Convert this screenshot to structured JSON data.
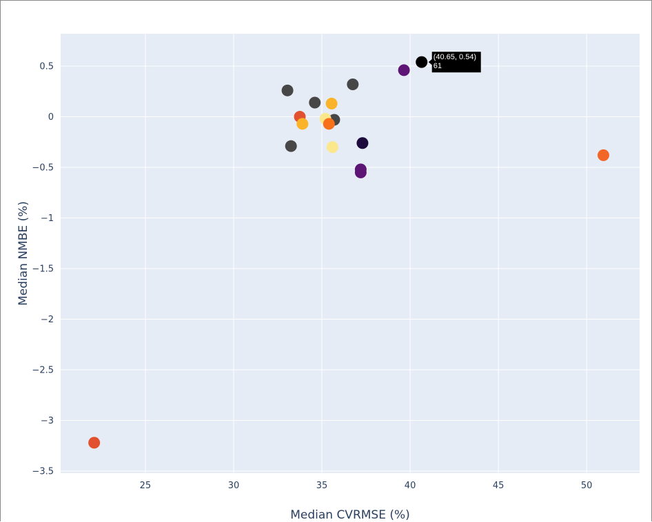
{
  "colors": {
    "plot_background": "#e5ecf6",
    "grid": "#ffffff",
    "tooltip_background": "#000000",
    "tooltip_text": "#ffffff"
  },
  "chart_data": {
    "type": "scatter",
    "title": "",
    "xlabel": "Median CVRMSE (%)",
    "ylabel": "Median NMBE (%)",
    "xlim": [
      20.2,
      53
    ],
    "ylim": [
      -3.52,
      0.82
    ],
    "x_ticks": [
      25,
      30,
      35,
      40,
      45,
      50
    ],
    "y_ticks": [
      0.5,
      0,
      -0.5,
      -1,
      -1.5,
      -2,
      -2.5,
      -3,
      -3.5
    ],
    "x_tick_labels": [
      "25",
      "30",
      "35",
      "40",
      "45",
      "50"
    ],
    "y_tick_labels": [
      "0.5",
      "0",
      "−0.5",
      "−1",
      "−1.5",
      "−2",
      "−2.5",
      "−3",
      "−3.5"
    ],
    "grid": true,
    "points": [
      {
        "x": 33.05,
        "y": 0.26,
        "color": "#474747"
      },
      {
        "x": 34.6,
        "y": 0.14,
        "color": "#474747"
      },
      {
        "x": 36.75,
        "y": 0.32,
        "color": "#474747"
      },
      {
        "x": 35.7,
        "y": -0.03,
        "color": "#474747"
      },
      {
        "x": 33.25,
        "y": -0.29,
        "color": "#474747"
      },
      {
        "x": 35.2,
        "y": -0.02,
        "color": "#fbe88c"
      },
      {
        "x": 35.6,
        "y": -0.3,
        "color": "#fbe88c"
      },
      {
        "x": 33.75,
        "y": 0.0,
        "color": "#e1512f"
      },
      {
        "x": 33.9,
        "y": -0.07,
        "color": "#fbb32a"
      },
      {
        "x": 35.55,
        "y": 0.13,
        "color": "#fbb32a"
      },
      {
        "x": 35.4,
        "y": -0.07,
        "color": "#f9701b"
      },
      {
        "x": 37.3,
        "y": -0.26,
        "color": "#1d0b3e"
      },
      {
        "x": 37.2,
        "y": -0.52,
        "color": "#5c1475"
      },
      {
        "x": 37.2,
        "y": -0.55,
        "color": "#5c1475"
      },
      {
        "x": 39.65,
        "y": 0.46,
        "color": "#5c1475"
      },
      {
        "x": 40.65,
        "y": 0.54,
        "color": "#000000"
      },
      {
        "x": 50.95,
        "y": -0.38,
        "color": "#f26628"
      },
      {
        "x": 22.1,
        "y": -3.22,
        "color": "#e1512f"
      }
    ],
    "tooltip": {
      "point_index": 15,
      "line1": "(40.65, 0.54)",
      "line2": "61"
    }
  }
}
